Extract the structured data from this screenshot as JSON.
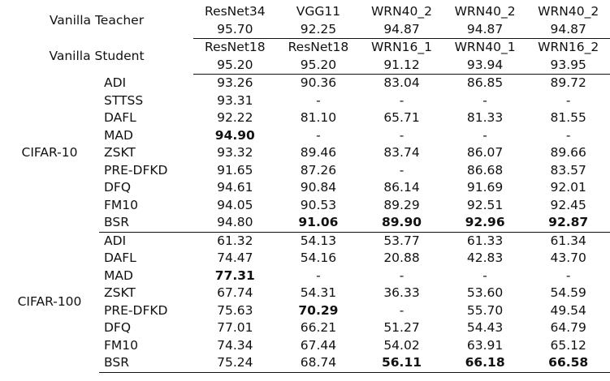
{
  "header": {
    "teacher_label": "Vanilla Teacher",
    "teacher_models": [
      "ResNet34",
      "VGG11",
      "WRN40_2",
      "WRN40_2",
      "WRN40_2"
    ],
    "teacher_acc": [
      "95.70",
      "92.25",
      "94.87",
      "94.87",
      "94.87"
    ],
    "student_label": "Vanilla Student",
    "student_models": [
      "ResNet18",
      "ResNet18",
      "WRN16_1",
      "WRN40_1",
      "WRN16_2"
    ],
    "student_acc": [
      "95.20",
      "95.20",
      "91.12",
      "93.94",
      "93.95"
    ]
  },
  "sections": [
    {
      "dataset": "CIFAR-10",
      "rows": [
        {
          "method": "ADI",
          "values": [
            "93.26",
            "90.36",
            "83.04",
            "86.85",
            "89.72"
          ],
          "bold": []
        },
        {
          "method": "STTSS",
          "values": [
            "93.31",
            "-",
            "-",
            "-",
            "-"
          ],
          "bold": []
        },
        {
          "method": "DAFL",
          "values": [
            "92.22",
            "81.10",
            "65.71",
            "81.33",
            "81.55"
          ],
          "bold": []
        },
        {
          "method": "MAD",
          "values": [
            "94.90",
            "-",
            "-",
            "-",
            "-"
          ],
          "bold": [
            0
          ]
        },
        {
          "method": "ZSKT",
          "values": [
            "93.32",
            "89.46",
            "83.74",
            "86.07",
            "89.66"
          ],
          "bold": []
        },
        {
          "method": "PRE-DFKD",
          "values": [
            "91.65",
            "87.26",
            "-",
            "86.68",
            "83.57"
          ],
          "bold": []
        },
        {
          "method": "DFQ",
          "values": [
            "94.61",
            "90.84",
            "86.14",
            "91.69",
            "92.01"
          ],
          "bold": []
        },
        {
          "method": "FM10",
          "values": [
            "94.05",
            "90.53",
            "89.29",
            "92.51",
            "92.45"
          ],
          "bold": []
        },
        {
          "method": "BSR",
          "values": [
            "94.80",
            "91.06",
            "89.90",
            "92.96",
            "92.87"
          ],
          "bold": [
            1,
            2,
            3,
            4
          ]
        }
      ]
    },
    {
      "dataset": "CIFAR-100",
      "rows": [
        {
          "method": "ADI",
          "values": [
            "61.32",
            "54.13",
            "53.77",
            "61.33",
            "61.34"
          ],
          "bold": []
        },
        {
          "method": "DAFL",
          "values": [
            "74.47",
            "54.16",
            "20.88",
            "42.83",
            "43.70"
          ],
          "bold": []
        },
        {
          "method": "MAD",
          "values": [
            "77.31",
            "-",
            "-",
            "-",
            "-"
          ],
          "bold": [
            0
          ]
        },
        {
          "method": "ZSKT",
          "values": [
            "67.74",
            "54.31",
            "36.33",
            "53.60",
            "54.59"
          ],
          "bold": []
        },
        {
          "method": "PRE-DFKD",
          "values": [
            "75.63",
            "70.29",
            "-",
            "55.70",
            "49.54"
          ],
          "bold": [
            1
          ]
        },
        {
          "method": "DFQ",
          "values": [
            "77.01",
            "66.21",
            "51.27",
            "54.43",
            "64.79"
          ],
          "bold": []
        },
        {
          "method": "FM10",
          "values": [
            "74.34",
            "67.44",
            "54.02",
            "63.91",
            "65.12"
          ],
          "bold": []
        },
        {
          "method": "BSR",
          "values": [
            "75.24",
            "68.74",
            "56.11",
            "66.18",
            "66.58"
          ],
          "bold": [
            2,
            3,
            4
          ]
        }
      ]
    }
  ]
}
